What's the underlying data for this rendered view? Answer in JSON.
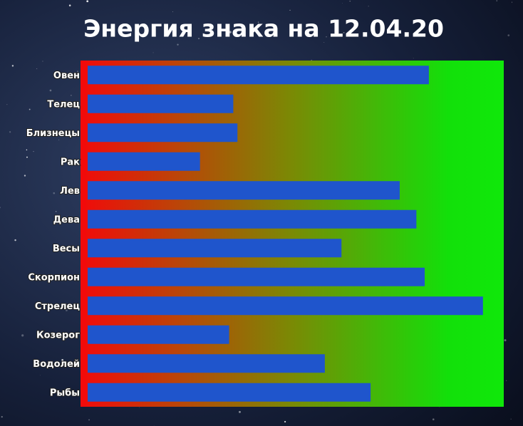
{
  "chart_data": {
    "type": "barh",
    "title": "Энергия знака на 12.04.20",
    "categories": [
      "Овен",
      "Телец",
      "Близнецы",
      "Рак",
      "Лев",
      "Дева",
      "Весы",
      "Скорпион",
      "Стрелец",
      "Козерог",
      "Водолей",
      "Рыбы"
    ],
    "values": [
      82,
      35,
      36,
      27,
      75,
      79,
      61,
      81,
      95,
      34,
      57,
      68
    ],
    "color": "#1f55cc",
    "xlim": [
      0,
      100
    ]
  }
}
